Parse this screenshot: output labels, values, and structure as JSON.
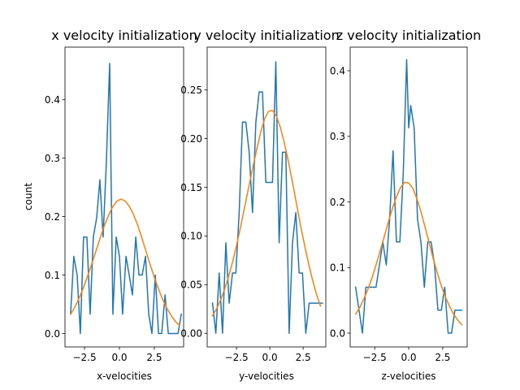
{
  "chart_data": [
    {
      "type": "line",
      "title": "x velocity initialization",
      "xlabel": "x-velocities",
      "ylabel": "count",
      "xlim": [
        -3.9,
        4.6
      ],
      "ylim": [
        -0.023,
        0.49
      ],
      "xticks": [
        -2.5,
        0.0,
        2.5
      ],
      "xtick_labels": [
        "−2.5",
        "0.0",
        "2.5"
      ],
      "yticks": [
        0.0,
        0.1,
        0.2,
        0.3,
        0.4
      ],
      "ytick_labels": [
        "0.0",
        "0.1",
        "0.2",
        "0.3",
        "0.4"
      ],
      "grid": false,
      "series": [
        {
          "color": "#1f77b4",
          "x": [
            -3.5,
            -3.27,
            -3.03,
            -2.8,
            -2.57,
            -2.33,
            -2.1,
            -1.87,
            -1.63,
            -1.4,
            -1.17,
            -0.93,
            -0.7,
            -0.47,
            -0.23,
            0.0,
            0.23,
            0.47,
            0.7,
            0.93,
            1.17,
            1.4,
            1.63,
            1.87,
            2.1,
            2.33,
            2.57,
            2.8,
            3.03,
            3.27,
            3.5,
            3.73,
            3.97,
            4.2,
            4.43
          ],
          "y": [
            0.033,
            0.132,
            0.1,
            0.0,
            0.165,
            0.165,
            0.033,
            0.165,
            0.198,
            0.263,
            0.165,
            0.297,
            0.462,
            0.033,
            0.165,
            0.132,
            0.033,
            0.132,
            0.1,
            0.066,
            0.165,
            0.1,
            0.1,
            0.132,
            0.033,
            0.0,
            0.1,
            0.0,
            0.0,
            0.066,
            0.0,
            0.0,
            0.0,
            0.0,
            0.033
          ]
        },
        {
          "color": "#ff7f0e",
          "x": [
            -3.5,
            -3.2,
            -2.9,
            -2.6,
            -2.3,
            -2.0,
            -1.7,
            -1.4,
            -1.1,
            -0.8,
            -0.5,
            -0.2,
            0.1,
            0.4,
            0.7,
            1.0,
            1.3,
            1.6,
            1.9,
            2.2,
            2.5,
            2.8,
            3.1,
            3.4,
            3.7,
            4.0,
            4.3
          ],
          "y": [
            0.033,
            0.045,
            0.06,
            0.077,
            0.097,
            0.118,
            0.14,
            0.162,
            0.183,
            0.201,
            0.216,
            0.226,
            0.23,
            0.227,
            0.218,
            0.204,
            0.186,
            0.164,
            0.141,
            0.118,
            0.096,
            0.076,
            0.058,
            0.043,
            0.031,
            0.021,
            0.014
          ]
        }
      ]
    },
    {
      "type": "line",
      "title": "y velocity initialization",
      "xlabel": "y-velocities",
      "ylabel": "",
      "xlim": [
        -4.7,
        4.2
      ],
      "ylim": [
        -0.014,
        0.294
      ],
      "xticks": [
        -2.5,
        0.0,
        2.5
      ],
      "xtick_labels": [
        "−2.5",
        "0.0",
        "2.5"
      ],
      "yticks": [
        0.0,
        0.05,
        0.1,
        0.15,
        0.2,
        0.25
      ],
      "ytick_labels": [
        "0.00",
        "0.05",
        "0.10",
        "0.15",
        "0.20",
        "0.25"
      ],
      "grid": false,
      "series": [
        {
          "color": "#1f77b4",
          "x": [
            -4.3,
            -4.05,
            -3.8,
            -3.55,
            -3.3,
            -3.05,
            -2.8,
            -2.55,
            -2.3,
            -2.05,
            -1.8,
            -1.55,
            -1.3,
            -1.05,
            -0.8,
            -0.55,
            -0.3,
            -0.05,
            0.2,
            0.45,
            0.7,
            0.95,
            1.2,
            1.45,
            1.7,
            1.95,
            2.2,
            2.45,
            2.7,
            2.95,
            3.2,
            3.45,
            3.7,
            3.95
          ],
          "y": [
            0.031,
            0.0,
            0.062,
            0.0,
            0.093,
            0.031,
            0.062,
            0.062,
            0.124,
            0.217,
            0.217,
            0.186,
            0.124,
            0.217,
            0.248,
            0.248,
            0.155,
            0.155,
            0.155,
            0.279,
            0.093,
            0.186,
            0.186,
            0.0,
            0.093,
            0.124,
            0.062,
            0.062,
            0.0,
            0.031,
            0.031,
            0.031,
            0.031,
            0.031
          ]
        },
        {
          "color": "#ff7f0e",
          "x": [
            -4.3,
            -4.0,
            -3.7,
            -3.4,
            -3.1,
            -2.8,
            -2.5,
            -2.2,
            -1.9,
            -1.6,
            -1.3,
            -1.0,
            -0.7,
            -0.4,
            -0.1,
            0.2,
            0.5,
            0.8,
            1.1,
            1.4,
            1.7,
            2.0,
            2.3,
            2.6,
            2.9,
            3.2,
            3.5,
            3.8
          ],
          "y": [
            0.018,
            0.025,
            0.034,
            0.045,
            0.058,
            0.073,
            0.09,
            0.109,
            0.129,
            0.149,
            0.169,
            0.188,
            0.206,
            0.22,
            0.228,
            0.229,
            0.223,
            0.211,
            0.195,
            0.176,
            0.155,
            0.133,
            0.111,
            0.091,
            0.072,
            0.055,
            0.04,
            0.028
          ]
        }
      ]
    },
    {
      "type": "line",
      "title": "z velocity initialization",
      "xlabel": "z-velocities",
      "ylabel": "",
      "xlim": [
        -4.3,
        4.3
      ],
      "ylim": [
        -0.021,
        0.436
      ],
      "xticks": [
        -2.5,
        0.0,
        2.5
      ],
      "xtick_labels": [
        "−2.5",
        "0.0",
        "2.5"
      ],
      "yticks": [
        0.0,
        0.1,
        0.2,
        0.3,
        0.4
      ],
      "ytick_labels": [
        "0.0",
        "0.1",
        "0.2",
        "0.3",
        "0.4"
      ],
      "grid": false,
      "series": [
        {
          "color": "#1f77b4",
          "x": [
            -3.9,
            -3.65,
            -3.4,
            -3.15,
            -2.9,
            -2.65,
            -2.4,
            -2.15,
            -1.9,
            -1.65,
            -1.4,
            -1.15,
            -0.9,
            -0.65,
            -0.4,
            -0.15,
            0.0,
            0.15,
            0.4,
            0.65,
            0.9,
            1.15,
            1.4,
            1.65,
            1.9,
            2.15,
            2.4,
            2.65,
            2.9,
            3.15,
            3.4,
            3.65,
            3.9
          ],
          "y": [
            0.07,
            0.035,
            0.0,
            0.07,
            0.07,
            0.07,
            0.07,
            0.104,
            0.139,
            0.104,
            0.174,
            0.278,
            0.139,
            0.139,
            0.243,
            0.417,
            0.313,
            0.347,
            0.313,
            0.174,
            0.139,
            0.07,
            0.139,
            0.139,
            0.104,
            0.035,
            0.035,
            0.07,
            0.0,
            0.0,
            0.035,
            0.035,
            0.035
          ]
        },
        {
          "color": "#ff7f0e",
          "x": [
            -3.9,
            -3.6,
            -3.3,
            -3.0,
            -2.7,
            -2.4,
            -2.1,
            -1.8,
            -1.5,
            -1.2,
            -0.9,
            -0.6,
            -0.3,
            0.0,
            0.3,
            0.6,
            0.9,
            1.2,
            1.5,
            1.8,
            2.1,
            2.4,
            2.7,
            3.0,
            3.3,
            3.6,
            3.9
          ],
          "y": [
            0.029,
            0.039,
            0.052,
            0.067,
            0.084,
            0.104,
            0.125,
            0.147,
            0.169,
            0.19,
            0.208,
            0.222,
            0.23,
            0.229,
            0.221,
            0.205,
            0.185,
            0.162,
            0.138,
            0.114,
            0.092,
            0.072,
            0.055,
            0.041,
            0.029,
            0.02,
            0.013
          ]
        }
      ]
    }
  ]
}
